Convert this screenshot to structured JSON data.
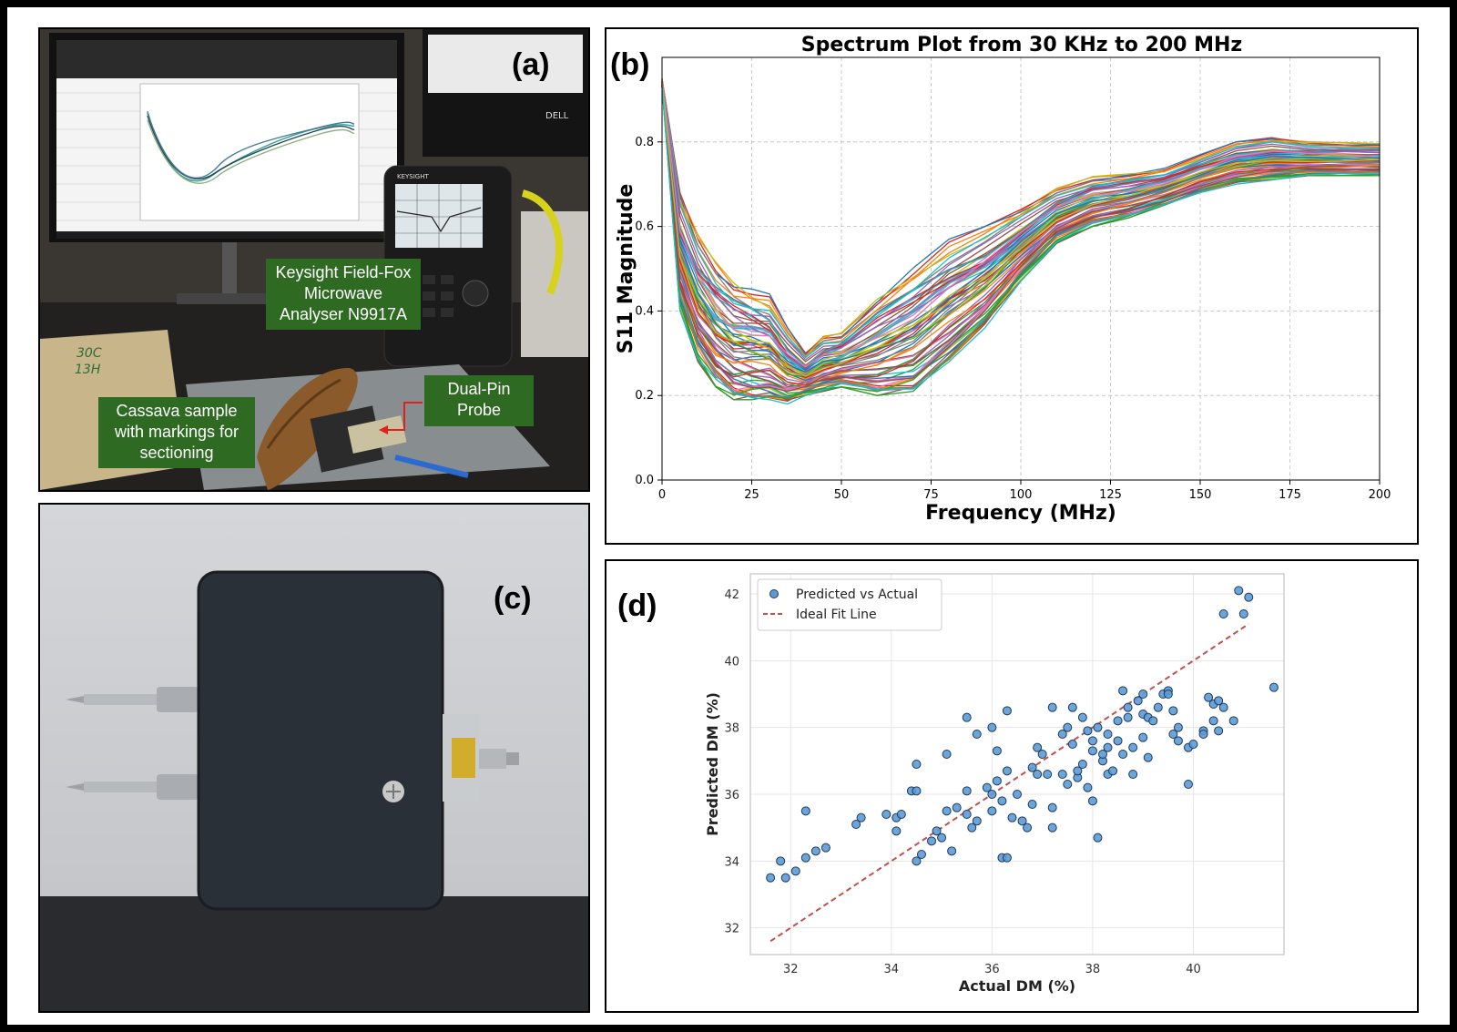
{
  "panels": {
    "a": {
      "label": "(a)",
      "callouts": {
        "analyser": [
          "Keysight Field-Fox",
          "Microwave",
          "Analyser N9917A"
        ],
        "probe": [
          "Dual-Pin",
          "Probe"
        ],
        "sample": [
          "Cassava sample",
          "with markings for",
          "sectioning"
        ]
      },
      "brand_text": "DELL",
      "instrument_text": "KEYSIGHT"
    },
    "b": {
      "label": "(b)"
    },
    "c": {
      "label": "(c)"
    },
    "d": {
      "label": "(d)"
    }
  },
  "colors": {
    "callout_green": "#2f6a23",
    "scatter_fill": "#5b9bd5",
    "fit_line": "#c0504d"
  },
  "chart_data": [
    {
      "id": "b",
      "type": "line",
      "title": "Spectrum Plot from 30 KHz to 200 MHz",
      "xlabel": "Frequency (MHz)",
      "ylabel": "S11 Magnitude",
      "xlim": [
        0,
        200
      ],
      "ylim": [
        0,
        1.0
      ],
      "xticks": [
        0,
        25,
        50,
        75,
        100,
        125,
        150,
        175,
        200
      ],
      "yticks": [
        0.0,
        0.2,
        0.4,
        0.6,
        0.8
      ],
      "ytick_labels": [
        "0.0",
        "0.2",
        "0.4",
        "0.6",
        "0.8"
      ],
      "grid": true,
      "series_count": 70,
      "x": [
        0,
        5,
        10,
        15,
        20,
        25,
        30,
        35,
        40,
        45,
        50,
        60,
        70,
        80,
        90,
        100,
        110,
        120,
        130,
        140,
        150,
        160,
        170,
        180,
        190,
        200
      ],
      "envelope_low": [
        0.93,
        0.4,
        0.28,
        0.22,
        0.19,
        0.19,
        0.19,
        0.18,
        0.2,
        0.21,
        0.22,
        0.2,
        0.21,
        0.28,
        0.36,
        0.47,
        0.56,
        0.6,
        0.62,
        0.65,
        0.68,
        0.7,
        0.71,
        0.72,
        0.72,
        0.72
      ],
      "envelope_high": [
        0.95,
        0.68,
        0.58,
        0.52,
        0.48,
        0.46,
        0.44,
        0.36,
        0.3,
        0.34,
        0.35,
        0.44,
        0.51,
        0.57,
        0.6,
        0.64,
        0.69,
        0.72,
        0.73,
        0.74,
        0.77,
        0.8,
        0.81,
        0.8,
        0.8,
        0.8
      ],
      "palette": [
        "#1f77b4",
        "#ff7f0e",
        "#2ca02c",
        "#d62728",
        "#9467bd",
        "#8c564b",
        "#e377c2",
        "#7f7f7f",
        "#bcbd22",
        "#17becf"
      ]
    },
    {
      "id": "d",
      "type": "scatter",
      "xlabel": "Actual DM (%)",
      "ylabel": "Predicted DM (%)",
      "xlim": [
        31.2,
        41.8
      ],
      "ylim": [
        31.2,
        42.6
      ],
      "xticks": [
        32,
        34,
        36,
        38,
        40
      ],
      "yticks": [
        32,
        34,
        36,
        38,
        40,
        42
      ],
      "grid": true,
      "legend": {
        "position": "top-left",
        "entries": [
          "Predicted vs Actual",
          "Ideal Fit Line"
        ]
      },
      "fit_line": {
        "x": [
          31.6,
          41.1
        ],
        "y": [
          31.6,
          41.1
        ]
      },
      "points": [
        [
          31.6,
          33.5
        ],
        [
          31.8,
          34.0
        ],
        [
          31.9,
          33.5
        ],
        [
          32.1,
          33.7
        ],
        [
          32.3,
          35.5
        ],
        [
          32.3,
          34.1
        ],
        [
          32.5,
          34.3
        ],
        [
          32.7,
          34.4
        ],
        [
          33.3,
          35.1
        ],
        [
          33.4,
          35.3
        ],
        [
          33.9,
          35.4
        ],
        [
          34.1,
          34.9
        ],
        [
          34.1,
          35.3
        ],
        [
          34.2,
          35.4
        ],
        [
          34.4,
          36.1
        ],
        [
          34.5,
          36.1
        ],
        [
          34.5,
          34.0
        ],
        [
          34.5,
          36.9
        ],
        [
          34.6,
          34.2
        ],
        [
          34.8,
          34.6
        ],
        [
          34.9,
          34.9
        ],
        [
          35.0,
          34.7
        ],
        [
          35.1,
          37.2
        ],
        [
          35.1,
          35.5
        ],
        [
          35.2,
          34.3
        ],
        [
          35.3,
          35.6
        ],
        [
          35.5,
          35.4
        ],
        [
          35.5,
          36.1
        ],
        [
          35.5,
          38.3
        ],
        [
          35.6,
          35.0
        ],
        [
          35.7,
          37.8
        ],
        [
          35.7,
          35.2
        ],
        [
          35.9,
          36.2
        ],
        [
          36.0,
          38.0
        ],
        [
          36.0,
          35.5
        ],
        [
          36.0,
          36.0
        ],
        [
          36.1,
          36.4
        ],
        [
          36.1,
          37.3
        ],
        [
          36.2,
          34.1
        ],
        [
          36.2,
          35.8
        ],
        [
          36.3,
          34.1
        ],
        [
          36.3,
          36.7
        ],
        [
          36.3,
          38.5
        ],
        [
          36.4,
          35.3
        ],
        [
          36.5,
          36.0
        ],
        [
          36.6,
          35.2
        ],
        [
          36.7,
          35.0
        ],
        [
          36.8,
          35.7
        ],
        [
          36.8,
          36.8
        ],
        [
          36.9,
          37.4
        ],
        [
          36.9,
          36.6
        ],
        [
          37.0,
          37.2
        ],
        [
          37.1,
          36.6
        ],
        [
          37.2,
          35.6
        ],
        [
          37.2,
          38.6
        ],
        [
          37.2,
          35.0
        ],
        [
          37.4,
          36.6
        ],
        [
          37.4,
          37.8
        ],
        [
          37.5,
          38.0
        ],
        [
          37.5,
          36.3
        ],
        [
          37.6,
          37.5
        ],
        [
          37.6,
          38.6
        ],
        [
          37.7,
          36.5
        ],
        [
          37.7,
          36.7
        ],
        [
          37.8,
          38.3
        ],
        [
          37.8,
          36.9
        ],
        [
          37.9,
          36.2
        ],
        [
          37.9,
          37.9
        ],
        [
          38.0,
          37.3
        ],
        [
          38.0,
          37.6
        ],
        [
          38.0,
          35.8
        ],
        [
          38.1,
          38.0
        ],
        [
          38.1,
          34.7
        ],
        [
          38.2,
          37.0
        ],
        [
          38.2,
          37.2
        ],
        [
          38.3,
          37.8
        ],
        [
          38.3,
          36.6
        ],
        [
          38.3,
          37.4
        ],
        [
          38.4,
          36.7
        ],
        [
          38.5,
          38.2
        ],
        [
          38.5,
          37.6
        ],
        [
          38.6,
          37.2
        ],
        [
          38.6,
          39.1
        ],
        [
          38.7,
          38.6
        ],
        [
          38.7,
          38.3
        ],
        [
          38.8,
          37.4
        ],
        [
          38.8,
          36.6
        ],
        [
          38.9,
          38.8
        ],
        [
          39.0,
          39.0
        ],
        [
          39.0,
          38.4
        ],
        [
          39.0,
          37.7
        ],
        [
          39.1,
          38.3
        ],
        [
          39.1,
          37.1
        ],
        [
          39.2,
          38.2
        ],
        [
          39.3,
          38.6
        ],
        [
          39.4,
          39.0
        ],
        [
          39.5,
          39.1
        ],
        [
          39.5,
          39.0
        ],
        [
          39.6,
          37.8
        ],
        [
          39.6,
          38.5
        ],
        [
          39.7,
          38.0
        ],
        [
          39.7,
          37.6
        ],
        [
          39.9,
          36.3
        ],
        [
          39.9,
          37.4
        ],
        [
          40.0,
          37.5
        ],
        [
          40.2,
          37.9
        ],
        [
          40.2,
          37.8
        ],
        [
          40.3,
          38.9
        ],
        [
          40.4,
          38.7
        ],
        [
          40.4,
          38.2
        ],
        [
          40.5,
          37.9
        ],
        [
          40.5,
          38.8
        ],
        [
          40.6,
          38.6
        ],
        [
          40.8,
          38.2
        ],
        [
          40.6,
          41.4
        ],
        [
          40.9,
          42.1
        ],
        [
          41.0,
          41.4
        ],
        [
          41.1,
          41.9
        ],
        [
          41.6,
          39.2
        ]
      ]
    }
  ]
}
